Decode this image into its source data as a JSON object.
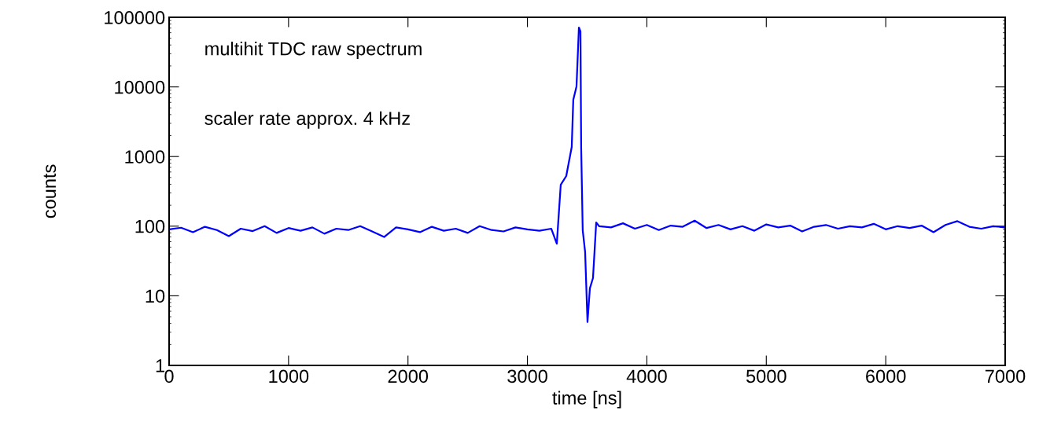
{
  "chart_data": {
    "type": "line",
    "xlabel": "time [ns]",
    "ylabel": "counts",
    "log": "y",
    "grid": false,
    "legend": false,
    "marker": "none",
    "line_style": "solid",
    "xlim": [
      0,
      7000
    ],
    "xticks": [
      0,
      1000,
      2000,
      3000,
      4000,
      5000,
      6000,
      7000
    ],
    "ylim": [
      1,
      100000
    ],
    "yticks": [
      1,
      10,
      100,
      1000,
      10000,
      100000
    ],
    "annotations": [
      "multihit TDC raw spectrum",
      "scaler rate approx. 4 kHz"
    ],
    "series": [
      {
        "color": "#0000ff",
        "x": [
          0,
          100,
          200,
          300,
          400,
          500,
          600,
          700,
          800,
          900,
          1000,
          1100,
          1200,
          1300,
          1400,
          1500,
          1600,
          1700,
          1800,
          1900,
          2000,
          2100,
          2200,
          2300,
          2400,
          2500,
          2600,
          2700,
          2800,
          2900,
          3000,
          3100,
          3200,
          3246,
          3279,
          3325,
          3371,
          3384,
          3411,
          3431,
          3444,
          3450,
          3463,
          3483,
          3503,
          3523,
          3549,
          3576,
          3600,
          3700,
          3800,
          3900,
          4000,
          4100,
          4200,
          4300,
          4400,
          4500,
          4600,
          4700,
          4800,
          4900,
          5000,
          5100,
          5200,
          5300,
          5400,
          5500,
          5600,
          5700,
          5800,
          5900,
          6000,
          6100,
          6200,
          6300,
          6400,
          6500,
          6600,
          6700,
          6800,
          6900,
          7000
        ],
        "values": [
          90,
          95,
          82,
          98,
          88,
          72,
          92,
          85,
          100,
          80,
          94,
          86,
          96,
          78,
          92,
          88,
          100,
          84,
          70,
          96,
          90,
          82,
          98,
          86,
          92,
          80,
          100,
          88,
          84,
          96,
          90,
          86,
          92,
          56,
          394,
          525,
          1373,
          6530,
          10160,
          71300,
          62700,
          1373,
          87,
          43,
          4.2,
          12.8,
          18,
          113,
          100,
          96,
          110,
          92,
          104,
          88,
          102,
          98,
          120,
          94,
          104,
          90,
          100,
          86,
          106,
          96,
          102,
          84,
          98,
          104,
          92,
          100,
          96,
          108,
          90,
          100,
          94,
          102,
          82,
          104,
          118,
          98,
          92,
          100,
          96
        ]
      }
    ]
  }
}
